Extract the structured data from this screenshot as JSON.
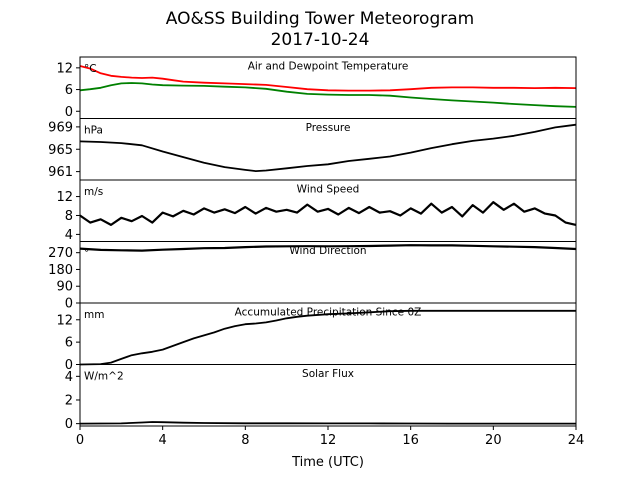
{
  "figure": {
    "title_line1": "AO&SS Building Tower Meteorogram",
    "title_line2": "2017-10-24",
    "xlabel": "Time (UTC)"
  },
  "chart_data": [
    {
      "type": "line",
      "title": "Air and Dewpoint Temperature",
      "unit": "°C",
      "x_range": [
        0,
        24
      ],
      "ylim": [
        -2,
        15
      ],
      "yticks": [
        0,
        6,
        12
      ],
      "series": [
        {
          "color": "#ff0000",
          "x": [
            0,
            0.5,
            1,
            1.5,
            2,
            2.5,
            3,
            3.5,
            4,
            4.5,
            5,
            6,
            7,
            8,
            9,
            10,
            11,
            12,
            13,
            14,
            15,
            16,
            17,
            18,
            19,
            20,
            21,
            22,
            23,
            24
          ],
          "y": [
            12.5,
            11.8,
            10.5,
            9.8,
            9.5,
            9.3,
            9.2,
            9.3,
            9.0,
            8.6,
            8.2,
            7.9,
            7.7,
            7.5,
            7.3,
            6.7,
            6.1,
            5.8,
            5.7,
            5.7,
            5.8,
            6.1,
            6.5,
            6.6,
            6.6,
            6.5,
            6.5,
            6.4,
            6.5,
            6.4
          ]
        },
        {
          "color": "#008000",
          "x": [
            0,
            0.5,
            1,
            1.5,
            2,
            2.5,
            3,
            3.5,
            4,
            5,
            6,
            7,
            8,
            9,
            10,
            11,
            12,
            13,
            14,
            15,
            16,
            17,
            18,
            19,
            20,
            21,
            22,
            23,
            24
          ],
          "y": [
            5.8,
            6.1,
            6.5,
            7.2,
            7.7,
            7.8,
            7.7,
            7.4,
            7.2,
            7.1,
            7.0,
            6.8,
            6.6,
            6.2,
            5.4,
            4.8,
            4.6,
            4.5,
            4.5,
            4.3,
            3.8,
            3.4,
            3.0,
            2.7,
            2.4,
            2.0,
            1.7,
            1.4,
            1.2
          ]
        }
      ]
    },
    {
      "type": "line",
      "title": "Pressure",
      "unit": "hPa",
      "x_range": [
        0,
        24
      ],
      "ylim": [
        959.5,
        970.5
      ],
      "yticks": [
        961,
        965,
        969
      ],
      "series": [
        {
          "color": "#000000",
          "x": [
            0,
            1,
            2,
            3,
            4,
            5,
            6,
            7,
            8,
            8.5,
            9,
            10,
            11,
            12,
            13,
            14,
            15,
            16,
            17,
            18,
            19,
            20,
            21,
            22,
            23,
            24
          ],
          "y": [
            966.4,
            966.3,
            966.1,
            965.7,
            964.6,
            963.6,
            962.6,
            961.8,
            961.3,
            961.1,
            961.2,
            961.6,
            962.0,
            962.3,
            962.9,
            963.3,
            963.7,
            964.4,
            965.2,
            965.9,
            966.5,
            966.9,
            967.4,
            968.1,
            968.9,
            969.4
          ]
        }
      ]
    },
    {
      "type": "line",
      "title": "Wind Speed",
      "unit": "m/s",
      "x_range": [
        0,
        24
      ],
      "ylim": [
        2.5,
        15.5
      ],
      "yticks": [
        4,
        8,
        12
      ],
      "series": [
        {
          "color": "#000000",
          "x": [
            0,
            0.5,
            1,
            1.5,
            2,
            2.5,
            3,
            3.5,
            4,
            4.5,
            5,
            5.5,
            6,
            6.5,
            7,
            7.5,
            8,
            8.5,
            9,
            9.5,
            10,
            10.5,
            11,
            11.5,
            12,
            12.5,
            13,
            13.5,
            14,
            14.5,
            15,
            15.5,
            16,
            16.5,
            17,
            17.5,
            18,
            18.5,
            19,
            19.5,
            20,
            20.5,
            21,
            21.5,
            22,
            22.5,
            23,
            23.5,
            24
          ],
          "y": [
            8.0,
            6.5,
            7.2,
            6.0,
            7.5,
            6.8,
            7.9,
            6.5,
            8.6,
            7.8,
            9.0,
            8.2,
            9.5,
            8.6,
            9.3,
            8.5,
            9.8,
            8.4,
            9.6,
            8.8,
            9.2,
            8.6,
            10.3,
            8.8,
            9.4,
            8.2,
            9.6,
            8.5,
            9.8,
            8.6,
            8.9,
            8.0,
            9.5,
            8.4,
            10.5,
            8.6,
            9.8,
            7.8,
            10.2,
            8.6,
            10.8,
            9.2,
            10.5,
            8.8,
            9.5,
            8.4,
            8.0,
            6.5,
            6.0
          ]
        }
      ]
    },
    {
      "type": "line",
      "title": "Wind Direction",
      "unit": "°",
      "x_range": [
        0,
        24
      ],
      "ylim": [
        0,
        330
      ],
      "yticks": [
        0,
        90,
        180,
        270
      ],
      "series": [
        {
          "color": "#000000",
          "x": [
            0,
            1,
            2,
            3,
            4,
            5,
            6,
            7,
            8,
            9,
            10,
            11,
            12,
            13,
            14,
            15,
            16,
            17,
            18,
            19,
            20,
            21,
            22,
            23,
            24
          ],
          "y": [
            292,
            285,
            283,
            281,
            286,
            290,
            294,
            295,
            300,
            303,
            304,
            305,
            304,
            305,
            306,
            308,
            310,
            309,
            309,
            307,
            304,
            302,
            300,
            295,
            290
          ]
        }
      ]
    },
    {
      "type": "line",
      "title": "Accumulated Precipitation Since 0Z",
      "unit": "mm",
      "x_range": [
        0,
        24
      ],
      "ylim": [
        0,
        16.5
      ],
      "yticks": [
        0,
        6,
        12
      ],
      "series": [
        {
          "color": "#000000",
          "x": [
            0,
            1,
            1.5,
            2,
            2.5,
            3,
            3.5,
            4,
            4.5,
            5,
            5.5,
            6,
            6.5,
            7,
            7.5,
            8,
            8.5,
            9,
            9.5,
            10,
            10.5,
            11,
            12,
            13,
            14,
            15,
            16,
            17,
            18,
            19,
            20,
            21,
            22,
            23,
            24
          ],
          "y": [
            0,
            0.1,
            0.5,
            1.5,
            2.5,
            3.0,
            3.4,
            4.0,
            5.0,
            6.0,
            7.0,
            7.8,
            8.6,
            9.6,
            10.3,
            10.8,
            11.0,
            11.3,
            11.8,
            12.4,
            12.8,
            13.1,
            13.5,
            13.7,
            14.0,
            14.3,
            14.4,
            14.4,
            14.4,
            14.4,
            14.4,
            14.4,
            14.4,
            14.4,
            14.4
          ]
        }
      ]
    },
    {
      "type": "line",
      "title": "Solar Flux",
      "unit": "W/m^2",
      "x_range": [
        0,
        24
      ],
      "ylim": [
        -0.2,
        5.0
      ],
      "yticks": [
        0,
        2,
        4
      ],
      "series": [
        {
          "color": "#000000",
          "x": [
            0,
            2,
            3,
            3.5,
            4,
            5,
            6,
            8,
            10,
            12,
            14,
            16,
            18,
            20,
            22,
            24
          ],
          "y": [
            0.0,
            0.02,
            0.1,
            0.14,
            0.12,
            0.08,
            0.05,
            0.03,
            0.03,
            0.02,
            0.02,
            0.01,
            0.0,
            0.0,
            0.0,
            0.0
          ]
        }
      ]
    }
  ],
  "x_axis": {
    "ticks": [
      0,
      4,
      8,
      12,
      16,
      20,
      24
    ]
  }
}
